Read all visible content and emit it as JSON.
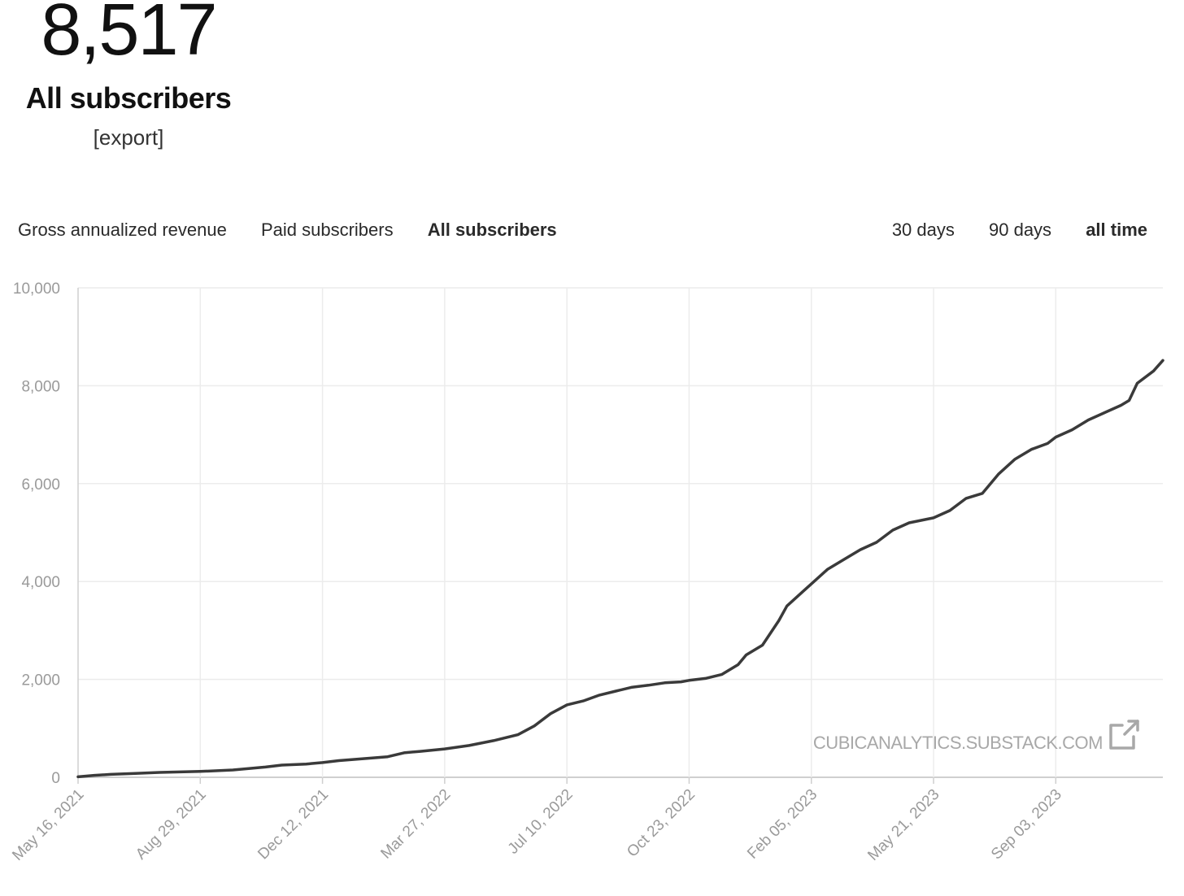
{
  "summary": {
    "value": "8,517",
    "label": "All subscribers",
    "export_label": "[export]"
  },
  "metric_tabs": [
    {
      "label": "Gross annualized revenue",
      "active": false
    },
    {
      "label": "Paid subscribers",
      "active": false
    },
    {
      "label": "All subscribers",
      "active": true
    }
  ],
  "range_tabs": [
    {
      "label": "30 days",
      "active": false
    },
    {
      "label": "90 days",
      "active": false
    },
    {
      "label": "all time",
      "active": true
    }
  ],
  "watermark": "CUBICANALYTICS.SUBSTACK.COM",
  "colors": {
    "line": "#3a3a3a",
    "grid": "#ececec",
    "axis": "#cfcfcf"
  },
  "chart_data": {
    "type": "line",
    "title": "",
    "xlabel": "",
    "ylabel": "",
    "ylim": [
      0,
      10000
    ],
    "y_ticks": [
      0,
      2000,
      4000,
      6000,
      8000,
      10000
    ],
    "y_tick_labels": [
      "0",
      "2,000",
      "4,000",
      "6,000",
      "8,000",
      "10,000"
    ],
    "x_ticks": [
      "2021-05-16",
      "2021-08-29",
      "2021-12-12",
      "2022-03-27",
      "2022-07-10",
      "2022-10-23",
      "2023-02-05",
      "2023-05-21",
      "2023-09-03"
    ],
    "x_tick_labels": [
      "May 16, 2021",
      "Aug 29, 2021",
      "Dec 12, 2021",
      "Mar 27, 2022",
      "Jul 10, 2022",
      "Oct 23, 2022",
      "Feb 05, 2023",
      "May 21, 2023",
      "Sep 03, 2023"
    ],
    "xlim": [
      "2021-05-16",
      "2023-12-04"
    ],
    "grid": true,
    "series": [
      {
        "x": [
          "2021-05-16",
          "2021-05-30",
          "2021-06-13",
          "2021-07-04",
          "2021-07-25",
          "2021-08-29",
          "2021-09-26",
          "2021-10-24",
          "2021-11-07",
          "2021-11-28",
          "2021-12-12",
          "2021-12-26",
          "2022-01-16",
          "2022-02-06",
          "2022-02-20",
          "2022-03-06",
          "2022-03-27",
          "2022-04-17",
          "2022-05-08",
          "2022-05-29",
          "2022-06-12",
          "2022-06-26",
          "2022-07-10",
          "2022-07-24",
          "2022-08-07",
          "2022-08-21",
          "2022-09-04",
          "2022-09-18",
          "2022-10-02",
          "2022-10-16",
          "2022-10-23",
          "2022-11-06",
          "2022-11-20",
          "2022-12-04",
          "2022-12-11",
          "2022-12-25",
          "2023-01-08",
          "2023-01-15",
          "2023-01-29",
          "2023-02-05",
          "2023-02-19",
          "2023-03-05",
          "2023-03-19",
          "2023-04-02",
          "2023-04-16",
          "2023-04-30",
          "2023-05-21",
          "2023-06-04",
          "2023-06-18",
          "2023-07-02",
          "2023-07-16",
          "2023-07-30",
          "2023-08-13",
          "2023-08-27",
          "2023-09-03",
          "2023-09-17",
          "2023-10-01",
          "2023-10-15",
          "2023-10-29",
          "2023-11-05",
          "2023-11-12",
          "2023-11-26",
          "2023-12-04"
        ],
        "y": [
          10,
          40,
          60,
          80,
          100,
          120,
          150,
          210,
          250,
          270,
          300,
          340,
          380,
          420,
          500,
          530,
          580,
          650,
          750,
          870,
          1050,
          1300,
          1480,
          1560,
          1680,
          1760,
          1840,
          1880,
          1930,
          1950,
          1980,
          2020,
          2100,
          2300,
          2500,
          2700,
          3200,
          3500,
          3800,
          3950,
          4250,
          4450,
          4650,
          4800,
          5050,
          5200,
          5300,
          5450,
          5700,
          5800,
          6200,
          6500,
          6700,
          6820,
          6950,
          7100,
          7300,
          7450,
          7600,
          7700,
          8050,
          8300,
          8517
        ]
      }
    ]
  }
}
